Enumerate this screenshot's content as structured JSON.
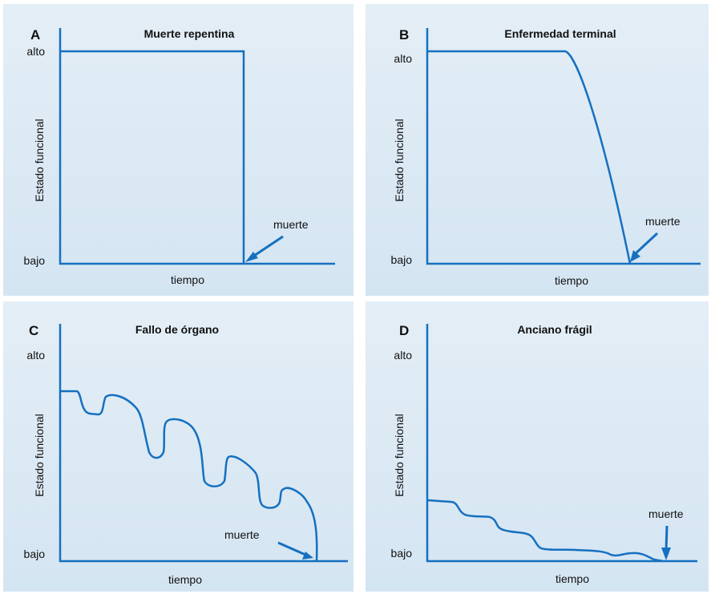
{
  "panels": [
    {
      "id": "A",
      "letter": "A",
      "title": "Muerte repentina",
      "y_label": "Estado funcional",
      "y_high": "alto",
      "y_low": "bajo",
      "x_label": "tiempo",
      "death_label": "muerte"
    },
    {
      "id": "B",
      "letter": "B",
      "title": "Enfermedad terminal",
      "y_label": "Estado funcional",
      "y_high": "alto",
      "y_low": "bajo",
      "x_label": "tiempo",
      "death_label": "muerte"
    },
    {
      "id": "C",
      "letter": "C",
      "title": "Fallo de órgano",
      "y_label": "Estado funcional",
      "y_high": "alto",
      "y_low": "bajo",
      "x_label": "tiempo",
      "death_label": "muerte"
    },
    {
      "id": "D",
      "letter": "D",
      "title": "Anciano frágil",
      "y_label": "Estado funcional",
      "y_high": "alto",
      "y_low": "bajo",
      "x_label": "tiempo",
      "death_label": "muerte"
    }
  ],
  "colors": {
    "line": "#1570c0",
    "background": "#d9e8f4",
    "text": "#111111"
  }
}
